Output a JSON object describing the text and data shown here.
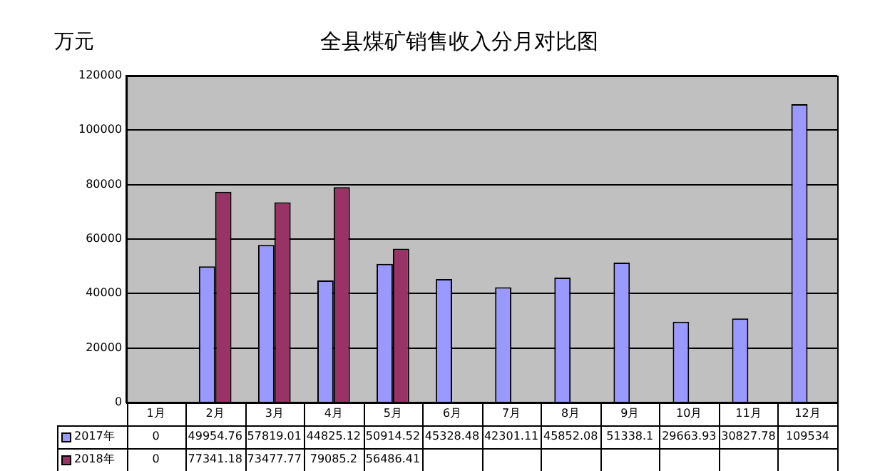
{
  "chart_data": {
    "type": "bar",
    "title": "全县煤矿销售收入分月对比图",
    "ylabel": "万元",
    "categories": [
      "1月",
      "2月",
      "3月",
      "4月",
      "5月",
      "6月",
      "7月",
      "8月",
      "9月",
      "10月",
      "11月",
      "12月"
    ],
    "series": [
      {
        "name": "2017年",
        "color": "#9999ff",
        "values": [
          0,
          49954.76,
          57819.01,
          44825.12,
          50914.52,
          45328.48,
          42301.11,
          45852.08,
          51338.1,
          29663.93,
          30827.78,
          109534
        ],
        "value_labels": [
          "0",
          "49954.76",
          "57819.01",
          "44825.12",
          "50914.52",
          "45328.48",
          "42301.11",
          "45852.08",
          "51338.1",
          "29663.93",
          "30827.78",
          "109534"
        ]
      },
      {
        "name": "2018年",
        "color": "#993366",
        "values": [
          0,
          77341.18,
          73477.77,
          79085.2,
          56486.41,
          null,
          null,
          null,
          null,
          null,
          null,
          null
        ],
        "value_labels": [
          "0",
          "77341.18",
          "73477.77",
          "79085.2",
          "56486.41",
          null,
          null,
          null,
          null,
          null,
          null,
          null
        ]
      }
    ],
    "ylim": [
      0,
      120000
    ],
    "yticks": [
      0,
      20000,
      40000,
      60000,
      80000,
      100000,
      120000
    ],
    "grid": "y",
    "legend": "bottom"
  }
}
